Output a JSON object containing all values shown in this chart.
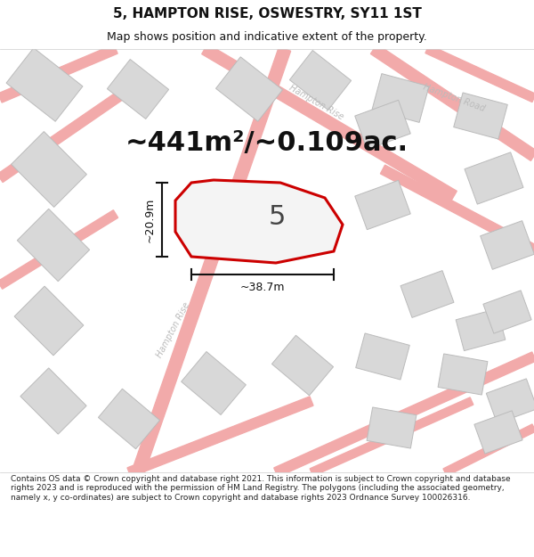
{
  "title": "5, HAMPTON RISE, OSWESTRY, SY11 1ST",
  "subtitle": "Map shows position and indicative extent of the property.",
  "area_text": "~441m²/~0.109ac.",
  "label_number": "5",
  "dim_width": "~38.7m",
  "dim_height": "~20.9m",
  "footer": "Contains OS data © Crown copyright and database right 2021. This information is subject to Crown copyright and database rights 2023 and is reproduced with the permission of HM Land Registry. The polygons (including the associated geometry, namely x, y co-ordinates) are subject to Crown copyright and database rights 2023 Ordnance Survey 100026316.",
  "bg_color": "#ffffff",
  "map_bg": "#f8f8f8",
  "road_color": "#f2aaaa",
  "building_fill": "#d8d8d8",
  "building_edge": "#bbbbbb",
  "plot_fill": "#f0f0f0",
  "plot_edge": "#cc0000",
  "street_label_color": "#bbbbbb",
  "dim_color": "#111111",
  "title_color": "#111111",
  "title_fontsize": 11,
  "subtitle_fontsize": 9,
  "area_fontsize": 22,
  "label_fontsize": 22,
  "footer_fontsize": 6.5
}
